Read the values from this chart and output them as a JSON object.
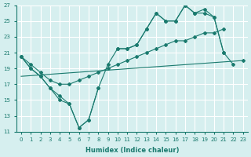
{
  "xlabel": "Humidex (Indice chaleur)",
  "background_color": "#d6efef",
  "grid_color": "#ffffff",
  "line_color": "#1a7a6e",
  "xlim": [
    -0.5,
    23.5
  ],
  "ylim": [
    11,
    27
  ],
  "yticks": [
    11,
    13,
    15,
    17,
    19,
    21,
    23,
    25,
    27
  ],
  "xticks": [
    0,
    1,
    2,
    3,
    4,
    5,
    6,
    7,
    8,
    9,
    10,
    11,
    12,
    13,
    14,
    15,
    16,
    17,
    18,
    19,
    20,
    21,
    22,
    23
  ],
  "line1_y": [
    20.5,
    19.0,
    18.0,
    16.5,
    15.0,
    14.5,
    11.5,
    12.5,
    16.5,
    19.5,
    21.5,
    21.5,
    22.0,
    24.0,
    26.0,
    25.0,
    25.0,
    27.0,
    26.0,
    26.0,
    25.5,
    21.0,
    19.5,
    null
  ],
  "line2_y": [
    20.5,
    19.0,
    18.0,
    16.5,
    15.5,
    14.5,
    11.5,
    12.5,
    16.5,
    null,
    21.5,
    21.5,
    22.0,
    24.0,
    26.0,
    25.0,
    25.0,
    27.0,
    26.0,
    26.5,
    25.5,
    21.0,
    null,
    20.0
  ],
  "line3_y": [
    20.5,
    19.5,
    18.5,
    17.5,
    17.0,
    17.0,
    17.5,
    18.0,
    18.5,
    19.0,
    19.5,
    20.0,
    20.5,
    21.0,
    21.5,
    22.0,
    22.5,
    22.5,
    23.0,
    23.5,
    23.5,
    24.0,
    null,
    null
  ],
  "line4_x": [
    0,
    23
  ],
  "line4_y": [
    18.0,
    20.0
  ]
}
